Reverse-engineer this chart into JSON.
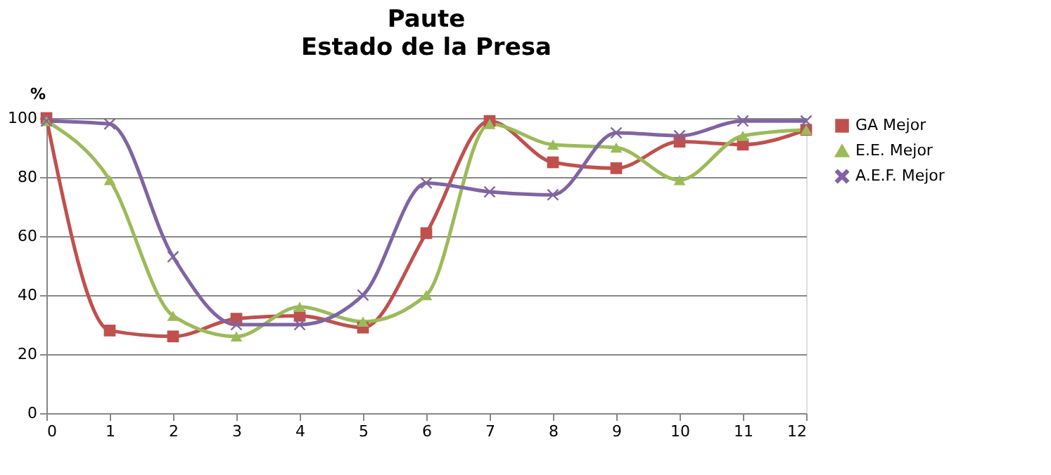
{
  "chart_data": {
    "type": "line",
    "title": "Paute",
    "subtitle": "Estado de la Presa",
    "ylabel": "%",
    "x": [
      0,
      1,
      2,
      3,
      4,
      5,
      6,
      7,
      8,
      9,
      10,
      11,
      12
    ],
    "xlim": [
      0,
      12
    ],
    "xticks": [
      0,
      1,
      2,
      3,
      4,
      5,
      6,
      7,
      8,
      9,
      10,
      11,
      12
    ],
    "ylim": [
      0,
      100
    ],
    "yticks": [
      0,
      20,
      40,
      60,
      80,
      100
    ],
    "grid": "y",
    "legend": "right",
    "series": [
      {
        "name": "GA Mejor",
        "color": "#c0504d",
        "marker": "square",
        "values": [
          100,
          28,
          26,
          32,
          33,
          29,
          61,
          99,
          85,
          83,
          92,
          91,
          96
        ]
      },
      {
        "name": "E.E. Mejor",
        "color": "#9bbb59",
        "marker": "triangle",
        "values": [
          99,
          79,
          33,
          26,
          36,
          31,
          40,
          98,
          91,
          90,
          79,
          94,
          96
        ]
      },
      {
        "name": "A.E.F. Mejor",
        "color": "#8064a2",
        "marker": "cross",
        "values": [
          99,
          98,
          53,
          30,
          30,
          40,
          78,
          75,
          74,
          95,
          94,
          99,
          99
        ]
      }
    ]
  }
}
